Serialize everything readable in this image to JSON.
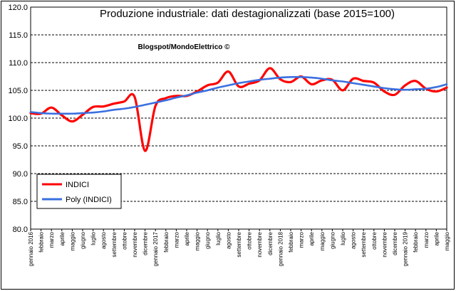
{
  "chart_data": {
    "type": "line",
    "title": "Produzione industriale: dati destagionalizzati (base 2015=100)",
    "watermark": "Blogspot/MondoElettrico ©",
    "xlabel": "",
    "ylabel": "",
    "ylim": [
      80.0,
      120.0
    ],
    "yticks": [
      "80.0",
      "85.0",
      "90.0",
      "95.0",
      "100.0",
      "105.0",
      "110.0",
      "115.0",
      "120.0"
    ],
    "grid": "horizontal-dashed",
    "legend_position": "bottom-left",
    "categories": [
      "gennaio 2016",
      "febbraio",
      "marzo",
      "aprile",
      "maggio",
      "giugno",
      "luglio",
      "agosto",
      "settembre",
      "ottobre",
      "novembre",
      "dicembre",
      "gennaio 2017",
      "febbraio",
      "marzo",
      "aprile",
      "maggio",
      "giugno",
      "luglio",
      "agosto",
      "settembre",
      "ottobre",
      "novembre",
      "dicembre",
      "gennaio 2018",
      "febbraio",
      "marzo",
      "aprile",
      "maggio",
      "giugno",
      "luglio",
      "agosto",
      "settembre",
      "ottobre",
      "novembre",
      "dicembre",
      "gennaio 2019",
      "febbraio",
      "marzo",
      "aprile",
      "maggio"
    ],
    "series": [
      {
        "name": "INDICI",
        "color": "#ff0000",
        "values": [
          100.9,
          100.8,
          101.9,
          100.5,
          99.4,
          100.6,
          102.0,
          102.1,
          102.6,
          103.0,
          103.8,
          94.1,
          102.2,
          103.6,
          104.0,
          104.0,
          104.8,
          105.9,
          106.4,
          108.4,
          105.7,
          106.2,
          106.8,
          109.0,
          107.0,
          106.5,
          107.5,
          106.1,
          106.8,
          106.9,
          105.0,
          107.1,
          106.7,
          106.4,
          104.8,
          104.2,
          105.9,
          106.7,
          105.3,
          104.8,
          105.5
        ]
      },
      {
        "name": "Poly (INDICI)",
        "color": "#3a6fe0",
        "values": [
          101.1,
          100.9,
          100.8,
          100.8,
          100.8,
          100.9,
          101.0,
          101.2,
          101.5,
          101.7,
          102.0,
          102.4,
          102.8,
          103.2,
          103.7,
          104.1,
          104.6,
          105.0,
          105.5,
          105.9,
          106.3,
          106.6,
          106.9,
          107.1,
          107.3,
          107.4,
          107.4,
          107.3,
          107.1,
          106.8,
          106.6,
          106.3,
          106.0,
          105.7,
          105.4,
          105.2,
          105.1,
          105.2,
          105.3,
          105.6,
          106.1
        ]
      }
    ]
  }
}
